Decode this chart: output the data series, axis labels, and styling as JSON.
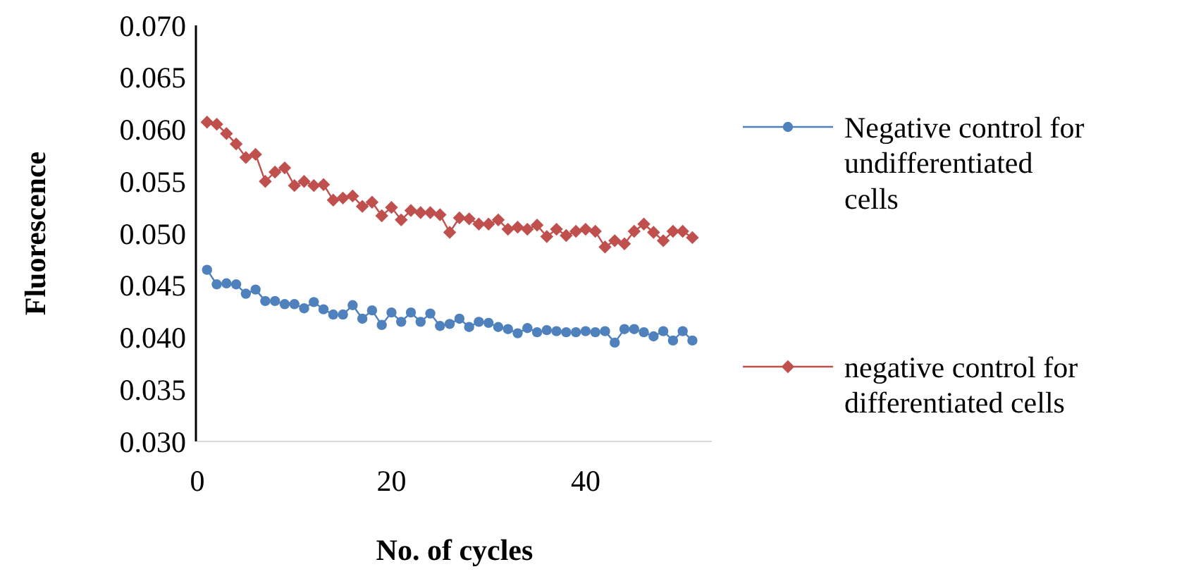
{
  "chart_data": {
    "type": "line",
    "xlabel": "No. of cycles",
    "ylabel": "Fluorescence",
    "x": [
      1,
      2,
      3,
      4,
      5,
      6,
      7,
      8,
      9,
      10,
      11,
      12,
      13,
      14,
      15,
      16,
      17,
      18,
      19,
      20,
      21,
      22,
      23,
      24,
      25,
      26,
      27,
      28,
      29,
      30,
      31,
      32,
      33,
      34,
      35,
      36,
      37,
      38,
      39,
      40,
      41,
      42,
      43,
      44,
      45,
      46,
      47,
      48,
      49,
      50,
      51
    ],
    "xlim": [
      0,
      53
    ],
    "xticks": [
      0,
      20,
      40
    ],
    "ylim": [
      0.03,
      0.07
    ],
    "yticks": [
      {
        "value": 0.03,
        "label": "0.030"
      },
      {
        "value": 0.035,
        "label": "0.035"
      },
      {
        "value": 0.04,
        "label": "0.040"
      },
      {
        "value": 0.045,
        "label": "0.045"
      },
      {
        "value": 0.05,
        "label": "0.050"
      },
      {
        "value": 0.055,
        "label": "0.055"
      },
      {
        "value": 0.06,
        "label": "0.060"
      },
      {
        "value": 0.065,
        "label": "0.065"
      },
      {
        "value": 0.07,
        "label": "0.070"
      }
    ],
    "grid": false,
    "legend": "right",
    "series": [
      {
        "name": "Negative control for undifferentiated cells",
        "color": "#4f81bd",
        "marker": "circle",
        "values": [
          0.0465,
          0.0451,
          0.0452,
          0.0451,
          0.0442,
          0.0446,
          0.0435,
          0.0435,
          0.0432,
          0.0432,
          0.0428,
          0.0434,
          0.0427,
          0.0422,
          0.0422,
          0.0431,
          0.0418,
          0.0426,
          0.0412,
          0.0424,
          0.0415,
          0.0424,
          0.0415,
          0.0423,
          0.0411,
          0.0413,
          0.0418,
          0.041,
          0.0415,
          0.0414,
          0.041,
          0.0408,
          0.0404,
          0.0409,
          0.0405,
          0.0407,
          0.0406,
          0.0405,
          0.0405,
          0.0406,
          0.0405,
          0.0406,
          0.0395,
          0.0408,
          0.0408,
          0.0405,
          0.0401,
          0.0406,
          0.0397,
          0.0406,
          0.0397
        ]
      },
      {
        "name": "negative control for differentiated cells",
        "color": "#c0504d",
        "marker": "diamond",
        "values": [
          0.0607,
          0.0605,
          0.0596,
          0.0586,
          0.0573,
          0.0576,
          0.055,
          0.0559,
          0.0563,
          0.0546,
          0.055,
          0.0546,
          0.0547,
          0.0532,
          0.0534,
          0.0536,
          0.0526,
          0.053,
          0.0517,
          0.0525,
          0.0513,
          0.0522,
          0.052,
          0.052,
          0.0518,
          0.0501,
          0.0515,
          0.0514,
          0.0509,
          0.0509,
          0.0513,
          0.0504,
          0.0506,
          0.0504,
          0.0508,
          0.0497,
          0.0504,
          0.0498,
          0.0502,
          0.0504,
          0.0502,
          0.0487,
          0.0493,
          0.049,
          0.0502,
          0.0509,
          0.0501,
          0.0493,
          0.0502,
          0.0502,
          0.0496
        ]
      }
    ]
  }
}
